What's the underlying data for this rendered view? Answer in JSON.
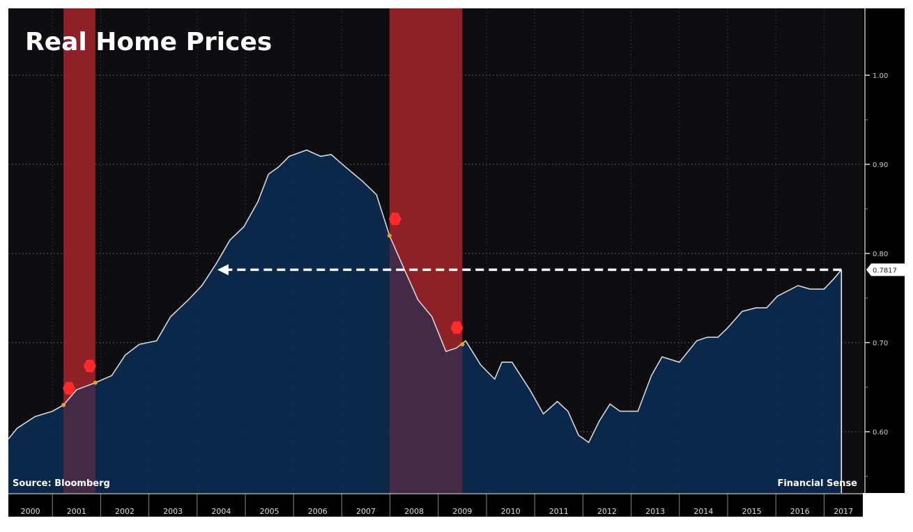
{
  "chart_data": {
    "type": "area",
    "title": "Real Home Prices",
    "source_note": "Source: Bloomberg",
    "brand_note": "Financial Sense",
    "xlim": [
      2000.09,
      2017.8
    ],
    "ylim": [
      0.531,
      1.075
    ],
    "y_ticks": [
      1.0,
      0.9,
      0.8,
      0.7,
      0.6
    ],
    "y_tick_labels": [
      "1.00",
      "0.90",
      "0.80",
      "0.70",
      "0.60"
    ],
    "x_tick_labels": [
      "2000",
      "2001",
      "2002",
      "2003",
      "2004",
      "2005",
      "2006",
      "2007",
      "2008",
      "2009",
      "2010",
      "2011",
      "2012",
      "2013",
      "2014",
      "2015",
      "2016",
      "2017"
    ],
    "grid": true,
    "last_value_label": "0.7817",
    "last_value": 0.7817,
    "colors": {
      "background": "#0e0e12",
      "area": "#0c2a4f",
      "line": "#d8d8d8",
      "recession": "#8a1f22",
      "marker": "#e8a020",
      "flag": "#ff2a2a"
    },
    "recessions": [
      [
        2001.23,
        2001.89
      ],
      [
        2007.99,
        2009.5
      ]
    ],
    "recession_markers": [
      {
        "x": 2001.23,
        "y": 0.63
      },
      {
        "x": 2001.89,
        "y": 0.655
      },
      {
        "x": 2007.99,
        "y": 0.82
      },
      {
        "x": 2009.5,
        "y": 0.698
      }
    ],
    "annotation_arrow": {
      "from_x": 2017.36,
      "to_x": 2004.42,
      "y": 0.7817,
      "style": "dashed"
    },
    "x": [
      2000.09,
      2000.27,
      2000.64,
      2001.0,
      2001.23,
      2001.5,
      2001.89,
      2002.23,
      2002.51,
      2002.8,
      2003.16,
      2003.45,
      2003.82,
      2004.1,
      2004.39,
      2004.68,
      2004.97,
      2005.26,
      2005.48,
      2005.69,
      2005.91,
      2006.27,
      2006.56,
      2006.78,
      2006.99,
      2007.43,
      2007.72,
      2007.99,
      2008.29,
      2008.58,
      2008.87,
      2009.16,
      2009.38,
      2009.57,
      2009.88,
      2010.17,
      2010.32,
      2010.53,
      2010.9,
      2011.18,
      2011.47,
      2011.69,
      2011.91,
      2012.12,
      2012.34,
      2012.56,
      2012.77,
      2013.14,
      2013.42,
      2013.64,
      2014.0,
      2014.36,
      2014.58,
      2014.8,
      2015.01,
      2015.3,
      2015.59,
      2015.81,
      2016.03,
      2016.46,
      2016.71,
      2017.0,
      2017.21,
      2017.36
    ],
    "y": [
      0.592,
      0.604,
      0.617,
      0.623,
      0.63,
      0.647,
      0.655,
      0.663,
      0.686,
      0.698,
      0.702,
      0.729,
      0.748,
      0.764,
      0.788,
      0.815,
      0.83,
      0.858,
      0.889,
      0.897,
      0.909,
      0.916,
      0.909,
      0.911,
      0.901,
      0.881,
      0.866,
      0.82,
      0.783,
      0.748,
      0.729,
      0.69,
      0.694,
      0.702,
      0.675,
      0.659,
      0.678,
      0.678,
      0.647,
      0.62,
      0.634,
      0.623,
      0.596,
      0.588,
      0.612,
      0.631,
      0.623,
      0.623,
      0.663,
      0.684,
      0.678,
      0.702,
      0.706,
      0.706,
      0.717,
      0.735,
      0.739,
      0.739,
      0.752,
      0.764,
      0.76,
      0.76,
      0.772,
      0.7817
    ]
  }
}
